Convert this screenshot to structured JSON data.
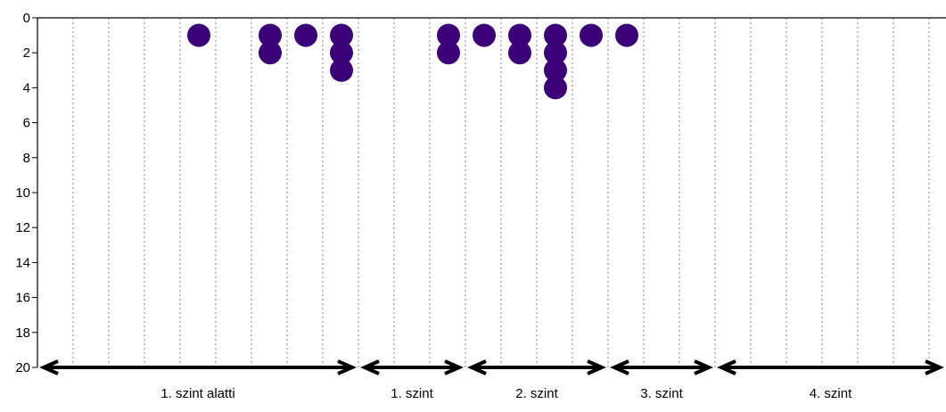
{
  "chart_data": {
    "type": "scatter",
    "title": "",
    "xlabel": "",
    "ylabel": "",
    "ylim": [
      0,
      20
    ],
    "y_inverted": true,
    "y_ticks": [
      0,
      2,
      4,
      6,
      8,
      10,
      12,
      14,
      16,
      18,
      20
    ],
    "y_tick_labels": [
      "0",
      "2",
      "4",
      "6",
      "8",
      "10",
      "12",
      "14",
      "16",
      "18",
      "20"
    ],
    "x_slots": 26,
    "grid": "vertical-dotted",
    "levels": [
      {
        "label": "1. szint alatti",
        "from_slot": 0,
        "to_slot": 9
      },
      {
        "label": "1. szint",
        "from_slot": 9,
        "to_slot": 12
      },
      {
        "label": "2. szint",
        "from_slot": 12,
        "to_slot": 16
      },
      {
        "label": "3. szint",
        "from_slot": 16,
        "to_slot": 19
      },
      {
        "label": "4. szint",
        "from_slot": 19,
        "to_slot": 26
      }
    ],
    "points": [
      {
        "slot": 5,
        "y": 1
      },
      {
        "slot": 7,
        "y": 1
      },
      {
        "slot": 7,
        "y": 2
      },
      {
        "slot": 8,
        "y": 1
      },
      {
        "slot": 9,
        "y": 1
      },
      {
        "slot": 9,
        "y": 2
      },
      {
        "slot": 9,
        "y": 3
      },
      {
        "slot": 12,
        "y": 1
      },
      {
        "slot": 12,
        "y": 2
      },
      {
        "slot": 13,
        "y": 1
      },
      {
        "slot": 14,
        "y": 1
      },
      {
        "slot": 14,
        "y": 2
      },
      {
        "slot": 15,
        "y": 1
      },
      {
        "slot": 15,
        "y": 2
      },
      {
        "slot": 15,
        "y": 3
      },
      {
        "slot": 15,
        "y": 4
      },
      {
        "slot": 16,
        "y": 1
      },
      {
        "slot": 17,
        "y": 1
      }
    ],
    "point_color": "#3c0078",
    "axis_color": "#000000",
    "grid_color": "#808080"
  }
}
